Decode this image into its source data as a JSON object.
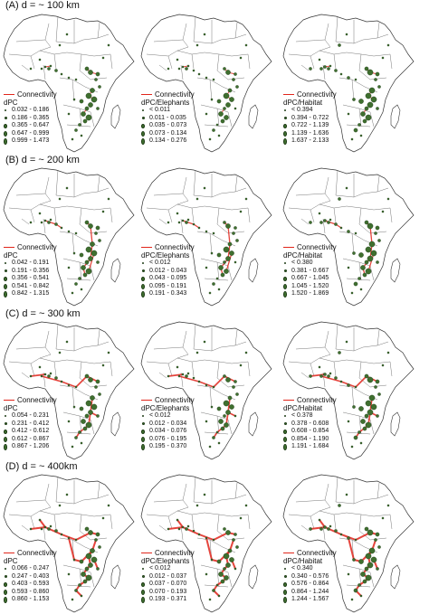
{
  "rows": [
    {
      "title": "(A) d = ~ 100 km",
      "level": 1,
      "panels": [
        {
          "metric": "dPC",
          "classes": [
            "0.032 - 0.186",
            "0.186 - 0.365",
            "0.365 - 0.647",
            "0.647 - 0.999",
            "0.999 - 1.473"
          ]
        },
        {
          "metric": "dPC/Elephants",
          "classes": [
            "< 0.011",
            "0.011 - 0.035",
            "0.035 - 0.073",
            "0.073 - 0.134",
            "0.134 - 0.276"
          ]
        },
        {
          "metric": "dPC/Habitat",
          "classes": [
            "< 0.394",
            "0.394 - 0.722",
            "0.722 - 1.139",
            "1.139 - 1.636",
            "1.637 - 2.133"
          ]
        }
      ]
    },
    {
      "title": "(B) d = ~ 200 km",
      "level": 2,
      "panels": [
        {
          "metric": "dPC",
          "classes": [
            "0.042 - 0.191",
            "0.191 - 0.356",
            "0.356 - 0.541",
            "0.541 - 0.842",
            "0.842 - 1.315"
          ]
        },
        {
          "metric": "dPC/Elephants",
          "classes": [
            "< 0.012",
            "0.012 - 0.043",
            "0.043 - 0.095",
            "0.095 - 0.191",
            "0.191 - 0.343"
          ]
        },
        {
          "metric": "dPC/Habitat",
          "classes": [
            "< 0.380",
            "0.381 - 0.667",
            "0.667 - 1.045",
            "1.045 - 1.520",
            "1.520 - 1.869"
          ]
        }
      ]
    },
    {
      "title": "(C) d = ~ 300 km",
      "level": 3,
      "panels": [
        {
          "metric": "dPC",
          "classes": [
            "0.054 - 0.231",
            "0.231 - 0.412",
            "0.412 - 0.612",
            "0.612 - 0.867",
            "0.867 - 1.206"
          ]
        },
        {
          "metric": "dPC/Elephants",
          "classes": [
            "< 0.012",
            "0.012 - 0.034",
            "0.034 - 0.076",
            "0.076 - 0.195",
            "0.195 - 0.370"
          ]
        },
        {
          "metric": "dPC/Habitat",
          "classes": [
            "< 0.378",
            "0.378 - 0.608",
            "0.608 - 0.854",
            "0.854 - 1.190",
            "1.191 - 1.684"
          ]
        }
      ]
    },
    {
      "title": "(D) d = ~ 400km",
      "level": 4,
      "panels": [
        {
          "metric": "dPC",
          "classes": [
            "0.066 - 0.247",
            "0.247 - 0.403",
            "0.403 - 0.593",
            "0.593 - 0.860",
            "0.860 - 1.153"
          ]
        },
        {
          "metric": "dPC/Elephants",
          "classes": [
            "< 0.012",
            "0.012 - 0.037",
            "0.037 - 0.070",
            "0.070 - 0.193",
            "0.193 - 0.371"
          ]
        },
        {
          "metric": "dPC/Habitat",
          "classes": [
            "< 0.340",
            "0.340 - 0.576",
            "0.576 - 0.864",
            "0.864 - 1.244",
            "1.244 - 1.567"
          ]
        }
      ]
    }
  ],
  "connectivity_label": "Connectivity",
  "colors": {
    "connectivity": "#e1251b",
    "patch": "#3f6f2f",
    "patch_edge": "#1c3a14",
    "country_border": "#555555",
    "land": "#ffffff"
  }
}
